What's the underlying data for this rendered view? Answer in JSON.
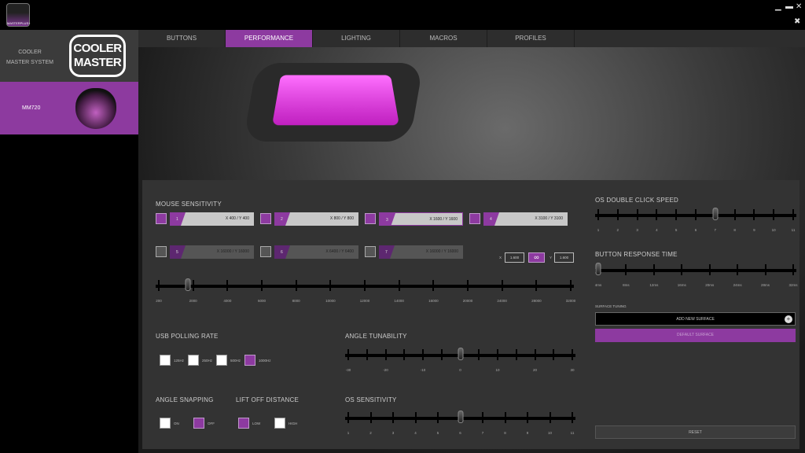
{
  "app": {
    "logo_text": "MASTERPLUS+",
    "window_controls": [
      "minimize-icon",
      "maximize-icon",
      "close-icon"
    ],
    "settings_icon": "tools-icon"
  },
  "sidebar": {
    "system_label": "COOLER MASTER SYSTEM",
    "logo_text": "COOLER MASTER",
    "device": "MM720"
  },
  "tabs": [
    {
      "label": "BUTTONS"
    },
    {
      "label": "PERFORMANCE",
      "active": true
    },
    {
      "label": "LIGHTING"
    },
    {
      "label": "MACROS"
    },
    {
      "label": "PROFILES"
    }
  ],
  "colors": {
    "accent": "#8d3aa0"
  },
  "sensitivity": {
    "title": "MOUSE SENSITIVITY",
    "stages": [
      {
        "num": "1",
        "value": "X 400 / Y 400",
        "enabled": true
      },
      {
        "num": "2",
        "value": "X 800 / Y 800",
        "enabled": true
      },
      {
        "num": "3",
        "value": "X 1600 / Y 1600",
        "enabled": true,
        "selected": true
      },
      {
        "num": "4",
        "value": "X 3100 / Y 3100",
        "enabled": true
      },
      {
        "num": "5",
        "value": "X 16000 / Y 16000",
        "enabled": false
      },
      {
        "num": "6",
        "value": "X 6400 / Y 6400",
        "enabled": false
      },
      {
        "num": "7",
        "value": "X 16000 / Y 16000",
        "enabled": false
      }
    ],
    "x_label": "X",
    "x_value": "1.600",
    "y_label": "Y",
    "y_value": "1.600",
    "link_icon": "link-icon",
    "slider": {
      "ticks": [
        "200",
        "2000",
        "4000",
        "6000",
        "8000",
        "10000",
        "12000",
        "14000",
        "16000",
        "20000",
        "24000",
        "28000",
        "32000"
      ],
      "thumb_index": 0.85
    }
  },
  "double_click": {
    "title": "OS DOUBLE CLICK SPEED",
    "slider": {
      "ticks": [
        "1",
        "2",
        "3",
        "4",
        "5",
        "6",
        "7",
        "8",
        "9",
        "10",
        "11"
      ],
      "thumb_index": 6
    }
  },
  "response": {
    "title": "BUTTON RESPONSE TIME",
    "slider": {
      "ticks": [
        "4ms",
        "8ms",
        "12ms",
        "16ms",
        "20ms",
        "24ms",
        "28ms",
        "32ms"
      ],
      "thumb_index": 0
    }
  },
  "surface": {
    "title": "SURFACE TUNING",
    "add_label": "ADD NEW SURFACE",
    "default_label": "DEFAULT SURFACE"
  },
  "polling": {
    "title": "USB POLLING RATE",
    "options": [
      {
        "label": "125Hz",
        "on": false
      },
      {
        "label": "250Hz",
        "on": false
      },
      {
        "label": "500Hz",
        "on": false
      },
      {
        "label": "1000Hz",
        "on": true
      }
    ]
  },
  "angle_tun": {
    "title": "ANGLE TUNABILITY",
    "labels": [
      "-30",
      "-20",
      "-10",
      "0",
      "10",
      "20",
      "30"
    ],
    "tick_count": 13,
    "thumb_index": 6
  },
  "snapping": {
    "title": "ANGLE SNAPPING",
    "options": [
      {
        "label": "ON",
        "on": false
      },
      {
        "label": "OFF",
        "on": true
      }
    ]
  },
  "liftoff": {
    "title": "LIFT OFF DISTANCE",
    "options": [
      {
        "label": "LOW",
        "on": true
      },
      {
        "label": "HIGH",
        "on": false
      }
    ]
  },
  "os_sens": {
    "title": "OS SENSITIVITY",
    "slider": {
      "ticks": [
        "1",
        "2",
        "3",
        "4",
        "5",
        "6",
        "7",
        "8",
        "9",
        "10",
        "11"
      ],
      "thumb_index": 5
    }
  },
  "reset_label": "RESET"
}
